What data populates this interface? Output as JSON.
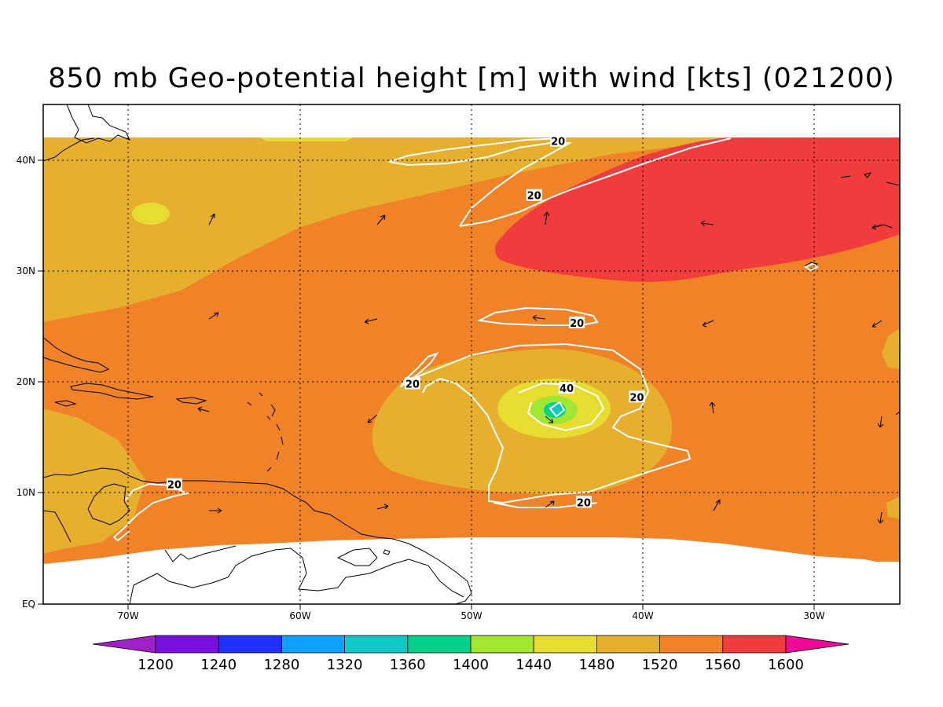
{
  "title": "850 mb Geo-potential height [m] with wind [kts] (021200)",
  "axes": {
    "longitude_ticks": [
      "70W",
      "60W",
      "50W",
      "40W",
      "30W"
    ],
    "latitude_ticks": [
      "40N",
      "30N",
      "20N",
      "10N",
      "EQ"
    ]
  },
  "contour_labels": [
    {
      "text": "20",
      "lon": -44.9,
      "lat": 41.8
    },
    {
      "text": "20",
      "lon": -46.3,
      "lat": 36.9
    },
    {
      "text": "20",
      "lon": -43.8,
      "lat": 25.4
    },
    {
      "text": "20",
      "lon": -53.4,
      "lat": 19.9
    },
    {
      "text": "40",
      "lon": -44.4,
      "lat": 19.5
    },
    {
      "text": "20",
      "lon": -40.3,
      "lat": 18.7
    },
    {
      "text": "20",
      "lon": -67.3,
      "lat": 10.8
    },
    {
      "text": "20",
      "lon": -43.4,
      "lat": 9.2
    }
  ],
  "colorbar": {
    "labels": [
      "1200",
      "1240",
      "1280",
      "1320",
      "1360",
      "1400",
      "1440",
      "1480",
      "1520",
      "1560",
      "1600"
    ],
    "colors": [
      "#a020c8",
      "#7a10e0",
      "#2030ff",
      "#10a0ff",
      "#10c8c8",
      "#00d08c",
      "#a0e632",
      "#e6dc32",
      "#e6af2d",
      "#f08228",
      "#f03c3c",
      "#f00a96"
    ]
  }
}
